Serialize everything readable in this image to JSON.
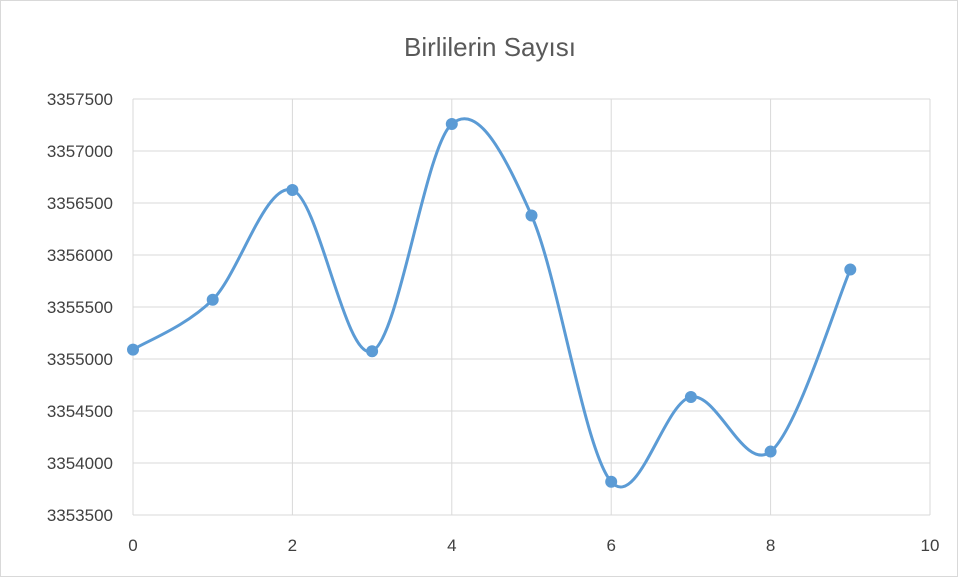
{
  "chart_data": {
    "type": "scatter",
    "title": "Birlilerin Sayısı",
    "xlabel": "",
    "ylabel": "",
    "xlim": [
      0,
      10
    ],
    "ylim": [
      3353500,
      3357500
    ],
    "x_ticks": [
      "0",
      "2",
      "4",
      "6",
      "8",
      "10"
    ],
    "y_ticks": [
      "3353500",
      "3354000",
      "3354500",
      "3355000",
      "3355500",
      "3356000",
      "3356500",
      "3357000",
      "3357500"
    ],
    "grid": true,
    "smooth_lines": true,
    "series_color": "#5b9bd5",
    "series": [
      {
        "x": [
          0,
          1,
          2,
          3,
          4,
          5,
          6,
          7,
          8,
          9
        ],
        "y": [
          3355090,
          3355570,
          3356625,
          3355075,
          3357260,
          3356380,
          3353820,
          3354635,
          3354110,
          3355860
        ]
      }
    ]
  }
}
